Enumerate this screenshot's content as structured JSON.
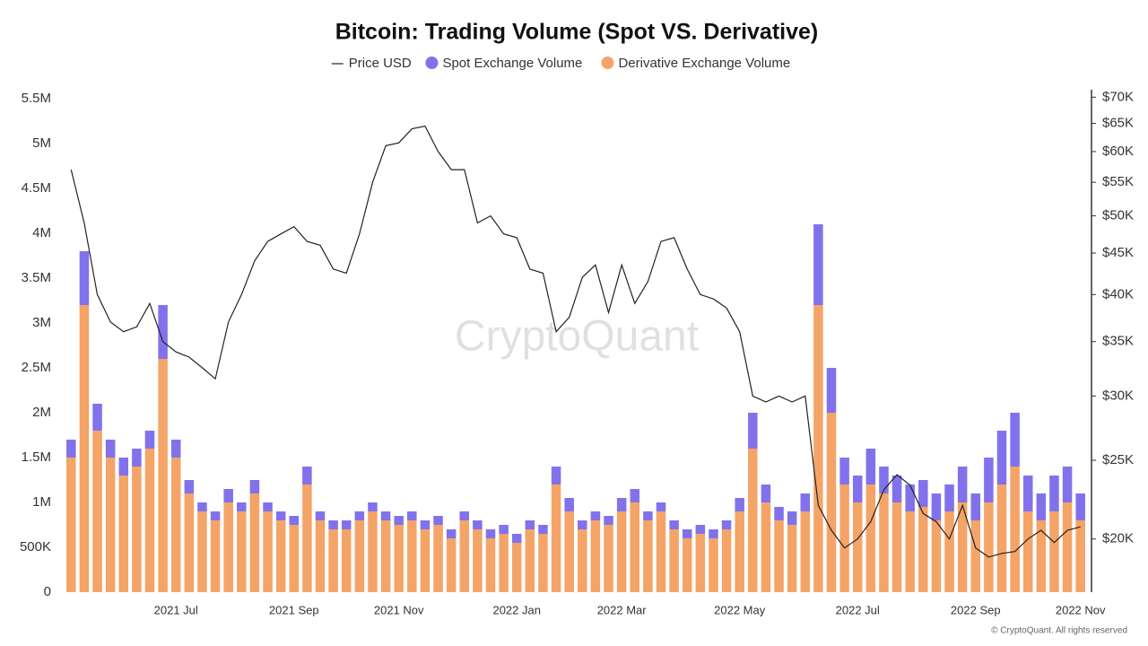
{
  "chart_data": {
    "type": "bar-line",
    "title": "Bitcoin: Trading Volume (Spot VS. Derivative)",
    "watermark": "CryptoQuant",
    "footer": "© CryptoQuant. All rights reserved",
    "stacked": true,
    "grid": false,
    "y2scale": "log",
    "categories": [
      null,
      null,
      null,
      null,
      null,
      null,
      null,
      null,
      "2021 Jul",
      null,
      null,
      null,
      null,
      null,
      null,
      null,
      null,
      "2021 Sep",
      null,
      null,
      null,
      null,
      null,
      null,
      null,
      "2021 Nov",
      null,
      null,
      null,
      null,
      null,
      null,
      null,
      null,
      "2022 Jan",
      null,
      null,
      null,
      null,
      null,
      null,
      null,
      "2022 Mar",
      null,
      null,
      null,
      null,
      null,
      null,
      null,
      null,
      "2022 May",
      null,
      null,
      null,
      null,
      null,
      null,
      null,
      null,
      "2022 Jul",
      null,
      null,
      null,
      null,
      null,
      null,
      null,
      null,
      "2022 Sep",
      null,
      null,
      null,
      null,
      null,
      null,
      null,
      "2022 Nov"
    ],
    "ylim": [
      0,
      5600000
    ],
    "yticks": [
      0,
      {
        "value": 500000,
        "label": "500K"
      },
      {
        "value": 1000000,
        "label": "1M"
      },
      {
        "value": 1500000,
        "label": "1.5M"
      },
      {
        "value": 2000000,
        "label": "2M"
      },
      {
        "value": 2500000,
        "label": "2.5M"
      },
      {
        "value": 3000000,
        "label": "3M"
      },
      {
        "value": 3500000,
        "label": "3.5M"
      },
      {
        "value": 4000000,
        "label": "4M"
      },
      {
        "value": 4500000,
        "label": "4.5M"
      },
      {
        "value": 5000000,
        "label": "5M"
      },
      {
        "value": 5500000,
        "label": "5.5M"
      }
    ],
    "y2lim": [
      17200,
      71500
    ],
    "y2ticks": [
      {
        "value": 20000,
        "label": "$20K"
      },
      {
        "value": 25000,
        "label": "$25K"
      },
      {
        "value": 30000,
        "label": "$30K"
      },
      {
        "value": 35000,
        "label": "$35K"
      },
      {
        "value": 40000,
        "label": "$40K"
      },
      {
        "value": 45000,
        "label": "$45K"
      },
      {
        "value": 50000,
        "label": "$50K"
      },
      {
        "value": 55000,
        "label": "$55K"
      },
      {
        "value": 60000,
        "label": "$60K"
      },
      {
        "value": 65000,
        "label": "$65K"
      },
      {
        "value": 70000,
        "label": "$70K"
      }
    ],
    "series": [
      {
        "name": "Derivative Exchange Volume",
        "color": "#f5a468",
        "values": [
          1500000,
          3200000,
          1800000,
          1500000,
          1300000,
          1400000,
          1600000,
          2600000,
          1500000,
          1100000,
          900000,
          800000,
          1000000,
          900000,
          1100000,
          900000,
          800000,
          750000,
          1200000,
          800000,
          700000,
          700000,
          800000,
          900000,
          800000,
          750000,
          800000,
          700000,
          750000,
          600000,
          800000,
          700000,
          600000,
          650000,
          550000,
          700000,
          650000,
          1200000,
          900000,
          700000,
          800000,
          750000,
          900000,
          1000000,
          800000,
          900000,
          700000,
          600000,
          650000,
          600000,
          700000,
          900000,
          1600000,
          1000000,
          800000,
          750000,
          900000,
          3200000,
          2000000,
          1200000,
          1000000,
          1200000,
          1100000,
          1000000,
          900000,
          950000,
          800000,
          900000,
          1000000,
          800000,
          1000000,
          1200000,
          1400000,
          900000,
          800000,
          900000,
          1000000,
          800000
        ]
      },
      {
        "name": "Spot Exchange Volume",
        "color": "#8172ec",
        "values": [
          200000,
          600000,
          300000,
          200000,
          200000,
          200000,
          200000,
          600000,
          200000,
          150000,
          100000,
          100000,
          150000,
          100000,
          150000,
          100000,
          100000,
          100000,
          200000,
          100000,
          100000,
          100000,
          100000,
          100000,
          100000,
          100000,
          100000,
          100000,
          100000,
          100000,
          100000,
          100000,
          100000,
          100000,
          100000,
          100000,
          100000,
          200000,
          150000,
          100000,
          100000,
          100000,
          150000,
          150000,
          100000,
          100000,
          100000,
          100000,
          100000,
          100000,
          100000,
          150000,
          400000,
          200000,
          150000,
          150000,
          200000,
          900000,
          500000,
          300000,
          300000,
          400000,
          300000,
          300000,
          300000,
          300000,
          300000,
          300000,
          400000,
          300000,
          500000,
          600000,
          600000,
          400000,
          300000,
          400000,
          400000,
          300000
        ]
      },
      {
        "name": "Price USD",
        "color": "#222222",
        "axis": "y2",
        "values": [
          57000,
          49000,
          40000,
          37000,
          36000,
          36500,
          39000,
          35000,
          34000,
          33500,
          32500,
          31500,
          37000,
          40000,
          44000,
          46500,
          47500,
          48500,
          46500,
          46000,
          43000,
          42500,
          47500,
          55000,
          61000,
          61500,
          64000,
          64500,
          60000,
          57000,
          57000,
          49000,
          50000,
          47500,
          47000,
          43000,
          42500,
          36000,
          37500,
          42000,
          43500,
          38000,
          43500,
          39000,
          41500,
          46500,
          47000,
          43000,
          40000,
          39500,
          38500,
          36000,
          30000,
          29500,
          30000,
          29500,
          30000,
          22000,
          20500,
          19500,
          20000,
          21000,
          23000,
          24000,
          23300,
          21500,
          21000,
          20000,
          22000,
          19500,
          19000,
          19200,
          19300,
          20000,
          20500,
          19800,
          20500,
          20700
        ]
      }
    ]
  }
}
